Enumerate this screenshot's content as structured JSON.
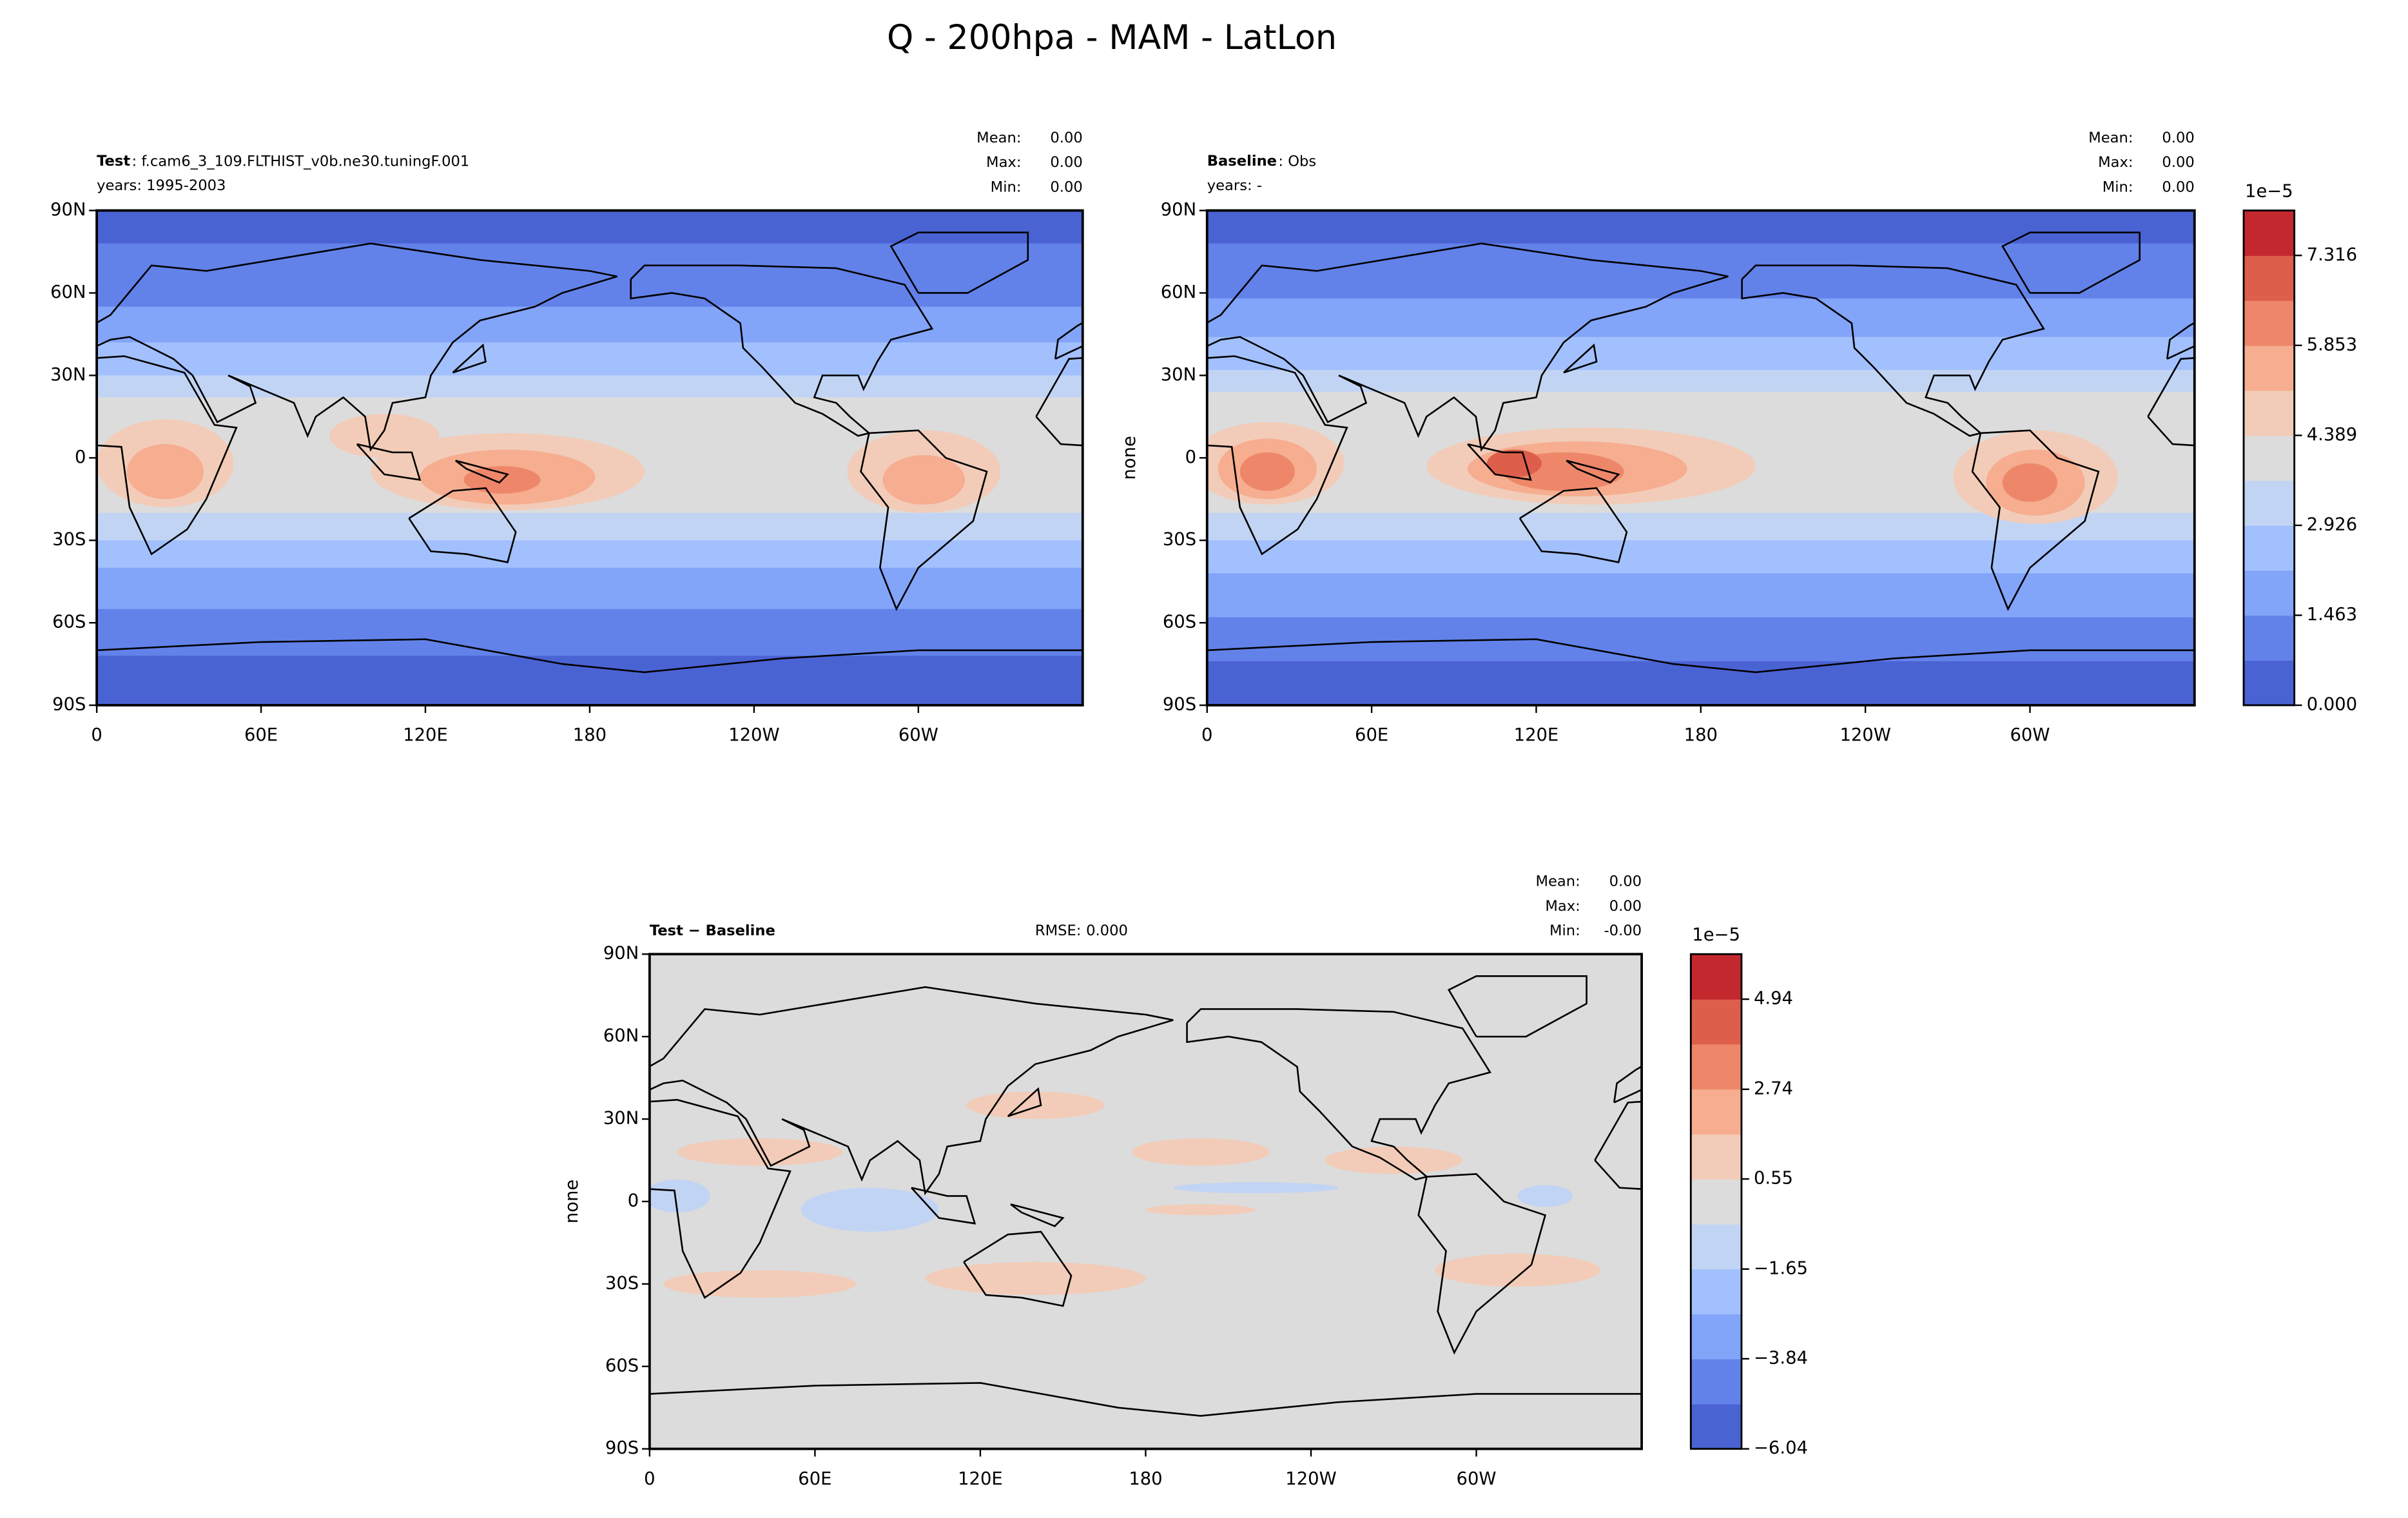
{
  "title": "Q - 200hpa - MAM - LatLon",
  "chart_data": [
    {
      "type": "contour",
      "name": "Test",
      "subtitle": ": f.cam6_3_109.FLTHIST_v0b.ne30.tuningF.001",
      "years": "years: 1995-2003",
      "stats": [
        {
          "name": "Mean:",
          "value": {
            "value": 0,
            "label": "0.00"
          }
        },
        {
          "name": "Max:",
          "value": {
            "value": 0,
            "label": "0.00"
          }
        },
        {
          "name": "Min:",
          "value": {
            "value": 0,
            "label": "0.00"
          }
        }
      ],
      "xlim": [
        0,
        360
      ],
      "ylim": [
        -90,
        90
      ],
      "xticks": [
        0,
        {
          "value": 60,
          "label": "60E"
        },
        {
          "value": 120,
          "label": "120E"
        },
        180,
        {
          "value": 240,
          "label": "120W"
        },
        {
          "value": 300,
          "label": "60W"
        }
      ],
      "yticks": [
        {
          "value": -90,
          "label": "90S"
        },
        {
          "value": -60,
          "label": "60S"
        },
        {
          "value": -30,
          "label": "30S"
        },
        0,
        {
          "value": 30,
          "label": "30N"
        },
        {
          "value": 60,
          "label": "60N"
        },
        {
          "value": 90,
          "label": "90N"
        }
      ]
    },
    {
      "type": "contour",
      "name": "Baseline",
      "subtitle": ": Obs",
      "years": "years: -",
      "ylabel": "none",
      "stats": [
        {
          "name": "Mean:",
          "value": {
            "value": 0,
            "label": "0.00"
          }
        },
        {
          "name": "Max:",
          "value": {
            "value": 0,
            "label": "0.00"
          }
        },
        {
          "name": "Min:",
          "value": {
            "value": 0,
            "label": "0.00"
          }
        }
      ],
      "xlim": [
        0,
        360
      ],
      "ylim": [
        -90,
        90
      ],
      "xticks": [
        0,
        {
          "value": 60,
          "label": "60E"
        },
        {
          "value": 120,
          "label": "120E"
        },
        180,
        {
          "value": 240,
          "label": "120W"
        },
        {
          "value": 300,
          "label": "60W"
        }
      ],
      "yticks": [
        {
          "value": -90,
          "label": "90S"
        },
        {
          "value": -60,
          "label": "60S"
        },
        {
          "value": -30,
          "label": "30S"
        },
        0,
        {
          "value": 30,
          "label": "30N"
        },
        {
          "value": 60,
          "label": "60N"
        },
        {
          "value": 90,
          "label": "90N"
        }
      ],
      "colorbar": {
        "exponent": "1e−5",
        "lim": [
          0,
          8.047
        ],
        "ticks": [
          {
            "value": 0,
            "label": "0.000"
          },
          1.463,
          2.926,
          4.389,
          5.853,
          7.316
        ],
        "colors": [
          "#4a63d3",
          "#6282ea",
          "#82a4f9",
          "#a2c0fd",
          "#c2d4f4",
          "#dcdcdc",
          "#f2ccb8",
          "#f6ad90",
          "#ee8769",
          "#dd5f4b",
          "#c4282f"
        ]
      }
    },
    {
      "type": "contour",
      "name": "Test − Baseline",
      "rmse_label": "RMSE:",
      "rmse": {
        "value": 0,
        "label": "0.000"
      },
      "ylabel": "none",
      "stats": [
        {
          "name": "Mean:",
          "value": {
            "value": 0,
            "label": "0.00"
          }
        },
        {
          "name": "Max:",
          "value": {
            "value": 0,
            "label": "0.00"
          }
        },
        {
          "name": "Min:",
          "value": {
            "value": 0,
            "label": "-0.00"
          }
        }
      ],
      "xlim": [
        0,
        360
      ],
      "ylim": [
        -90,
        90
      ],
      "xticks": [
        0,
        {
          "value": 60,
          "label": "60E"
        },
        {
          "value": 120,
          "label": "120E"
        },
        180,
        {
          "value": 240,
          "label": "120W"
        },
        {
          "value": 300,
          "label": "60W"
        }
      ],
      "yticks": [
        {
          "value": -90,
          "label": "90S"
        },
        {
          "value": -60,
          "label": "60S"
        },
        {
          "value": -30,
          "label": "30S"
        },
        0,
        {
          "value": 30,
          "label": "30N"
        },
        {
          "value": 60,
          "label": "60N"
        },
        {
          "value": 90,
          "label": "90N"
        }
      ],
      "colorbar": {
        "exponent": "1e−5",
        "lim": [
          -6.04,
          6.04
        ],
        "ticks": [
          {
            "value": -6.04,
            "label": "−6.04"
          },
          {
            "value": -3.84,
            "label": "−3.84"
          },
          {
            "value": -1.65,
            "label": "−1.65"
          },
          0.55,
          2.74,
          4.94
        ],
        "colors": [
          "#4a63d3",
          "#6282ea",
          "#82a4f9",
          "#a2c0fd",
          "#c2d4f4",
          "#dcdcdc",
          "#f2ccb8",
          "#f6ad90",
          "#ee8769",
          "#dd5f4b",
          "#c4282f"
        ]
      }
    }
  ]
}
